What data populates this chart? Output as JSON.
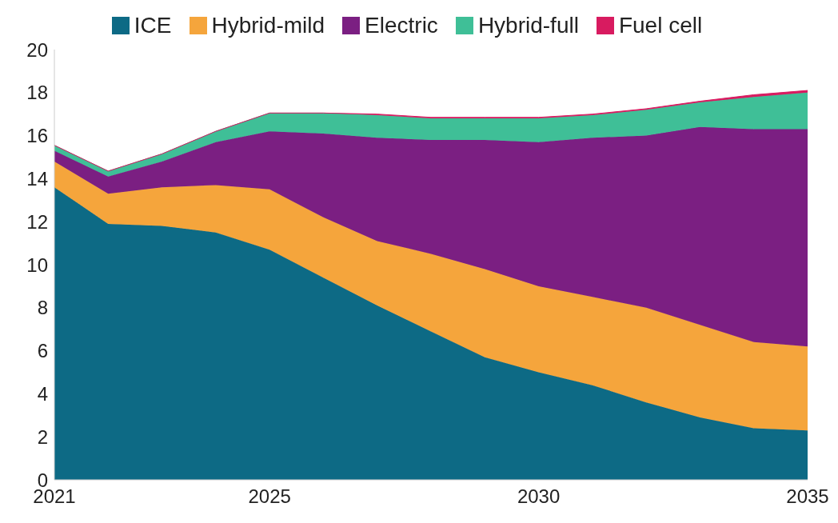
{
  "chart_data": {
    "type": "area",
    "stacked": true,
    "legend": "top",
    "grid": false,
    "x": [
      2021,
      2022,
      2023,
      2024,
      2025,
      2026,
      2027,
      2028,
      2029,
      2030,
      2031,
      2032,
      2033,
      2034,
      2035
    ],
    "xlim": [
      2021,
      2035
    ],
    "xticks": [
      2021,
      2025,
      2030,
      2035
    ],
    "ylim": [
      0,
      20
    ],
    "yticks": [
      0,
      2,
      4,
      6,
      8,
      10,
      12,
      14,
      16,
      18,
      20
    ],
    "series": [
      {
        "name": "ICE",
        "color": "#0d6a85",
        "values": [
          13.6,
          11.9,
          11.8,
          11.5,
          10.7,
          9.4,
          8.1,
          6.9,
          5.7,
          5.0,
          4.4,
          3.6,
          2.9,
          2.4,
          2.3
        ]
      },
      {
        "name": "Hybrid-mild",
        "color": "#f5a53c",
        "values": [
          1.2,
          1.4,
          1.8,
          2.2,
          2.8,
          2.8,
          3.0,
          3.6,
          4.1,
          4.0,
          4.1,
          4.4,
          4.3,
          4.0,
          3.9
        ]
      },
      {
        "name": "Electric",
        "color": "#7b1f82",
        "values": [
          0.5,
          0.8,
          1.2,
          2.0,
          2.7,
          3.9,
          4.8,
          5.3,
          6.0,
          6.7,
          7.4,
          8.0,
          9.2,
          9.9,
          10.1
        ]
      },
      {
        "name": "Hybrid-full",
        "color": "#3fbf97",
        "values": [
          0.25,
          0.25,
          0.35,
          0.5,
          0.85,
          0.95,
          1.05,
          1.0,
          1.0,
          1.1,
          1.05,
          1.2,
          1.15,
          1.5,
          1.7
        ]
      },
      {
        "name": "Fuel cell",
        "color": "#d81b60",
        "values": [
          0,
          0,
          0,
          0,
          0,
          0,
          0.05,
          0.05,
          0.05,
          0.05,
          0.05,
          0.05,
          0.05,
          0.1,
          0.1
        ]
      }
    ]
  }
}
